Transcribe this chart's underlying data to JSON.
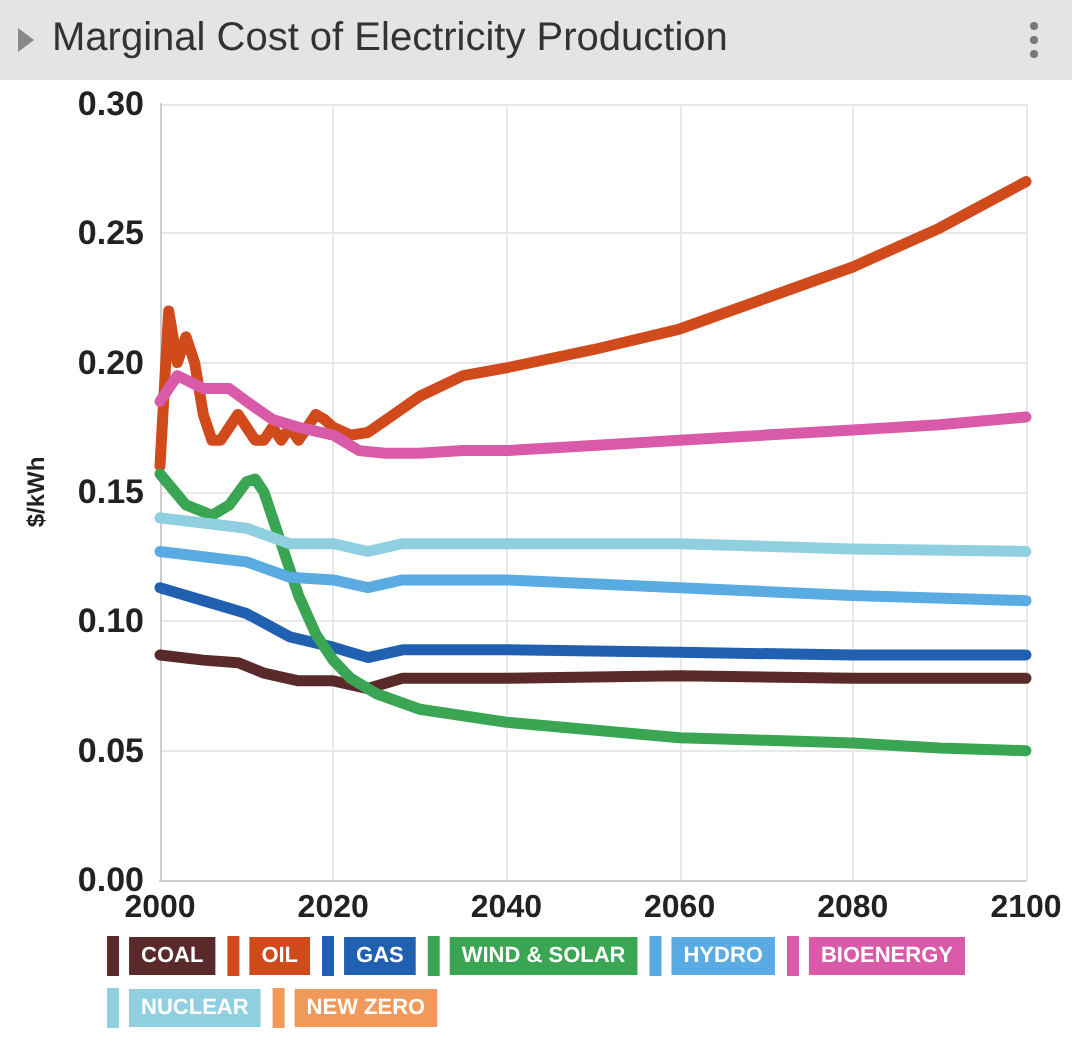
{
  "chart_data": {
    "type": "line",
    "title": "Marginal Cost of Electricity Production",
    "ylabel": "$/kWh",
    "xlim": [
      2000,
      2100
    ],
    "xticks": [
      2000,
      2020,
      2040,
      2060,
      2080,
      2100
    ],
    "ylim": [
      0,
      0.3
    ],
    "yticks": [
      {
        "value": 0,
        "label": "0.00"
      },
      {
        "value": 0.05,
        "label": "0.05"
      },
      {
        "value": 0.1,
        "label": "0.10"
      },
      {
        "value": 0.15,
        "label": "0.15"
      },
      {
        "value": 0.2,
        "label": "0.20"
      },
      {
        "value": 0.25,
        "label": "0.25"
      },
      {
        "value": 0.3,
        "label": "0.30"
      }
    ],
    "grid": true,
    "legend": "bottom",
    "marker": "none",
    "line_style": "solid",
    "series": [
      {
        "name": "COAL",
        "color": "#5a2a2a",
        "x": [
          2000,
          2005,
          2009,
          2012,
          2016,
          2020,
          2024,
          2028,
          2040,
          2060,
          2080,
          2100
        ],
        "values": [
          0.087,
          0.085,
          0.084,
          0.08,
          0.077,
          0.077,
          0.074,
          0.078,
          0.078,
          0.079,
          0.078,
          0.078
        ]
      },
      {
        "name": "OIL",
        "color": "#d04a1c",
        "x": [
          2000,
          2001,
          2002,
          2003,
          2004,
          2005,
          2006,
          2007,
          2008,
          2009,
          2010,
          2011,
          2012,
          2013,
          2014,
          2015,
          2016,
          2017,
          2018,
          2019,
          2020,
          2022,
          2024,
          2027,
          2030,
          2035,
          2040,
          2050,
          2060,
          2070,
          2080,
          2090,
          2100
        ],
        "values": [
          0.16,
          0.22,
          0.2,
          0.21,
          0.2,
          0.18,
          0.17,
          0.17,
          0.175,
          0.18,
          0.175,
          0.17,
          0.17,
          0.175,
          0.17,
          0.175,
          0.17,
          0.175,
          0.18,
          0.178,
          0.175,
          0.172,
          0.173,
          0.18,
          0.187,
          0.195,
          0.198,
          0.205,
          0.213,
          0.225,
          0.237,
          0.252,
          0.27
        ]
      },
      {
        "name": "GAS",
        "color": "#2160b0",
        "x": [
          2000,
          2005,
          2010,
          2015,
          2020,
          2024,
          2028,
          2040,
          2060,
          2080,
          2100
        ],
        "values": [
          0.113,
          0.108,
          0.103,
          0.094,
          0.09,
          0.086,
          0.089,
          0.089,
          0.088,
          0.087,
          0.087
        ]
      },
      {
        "name": "WIND & SOLAR",
        "color": "#3aa552",
        "x": [
          2000,
          2003,
          2006,
          2008,
          2010,
          2011,
          2012,
          2014,
          2016,
          2018,
          2020,
          2022,
          2025,
          2030,
          2040,
          2050,
          2060,
          2070,
          2080,
          2090,
          2100
        ],
        "values": [
          0.157,
          0.145,
          0.141,
          0.145,
          0.154,
          0.155,
          0.15,
          0.13,
          0.11,
          0.095,
          0.085,
          0.078,
          0.072,
          0.066,
          0.061,
          0.058,
          0.055,
          0.054,
          0.053,
          0.051,
          0.05
        ]
      },
      {
        "name": "HYDRO",
        "color": "#5aabe2",
        "x": [
          2000,
          2005,
          2010,
          2015,
          2020,
          2024,
          2028,
          2040,
          2060,
          2080,
          2100
        ],
        "values": [
          0.127,
          0.125,
          0.123,
          0.117,
          0.116,
          0.113,
          0.116,
          0.116,
          0.113,
          0.11,
          0.108
        ]
      },
      {
        "name": "BIOENERGY",
        "color": "#d85aa8",
        "x": [
          2000,
          2002,
          2005,
          2008,
          2010,
          2013,
          2016,
          2020,
          2023,
          2026,
          2030,
          2035,
          2040,
          2050,
          2060,
          2070,
          2080,
          2090,
          2100
        ],
        "values": [
          0.185,
          0.195,
          0.19,
          0.19,
          0.185,
          0.178,
          0.175,
          0.172,
          0.166,
          0.165,
          0.165,
          0.166,
          0.166,
          0.168,
          0.17,
          0.172,
          0.174,
          0.176,
          0.179
        ]
      },
      {
        "name": "NUCLEAR",
        "color": "#8fcfe0",
        "x": [
          2000,
          2005,
          2010,
          2015,
          2020,
          2024,
          2028,
          2040,
          2060,
          2080,
          2100
        ],
        "values": [
          0.14,
          0.138,
          0.136,
          0.13,
          0.13,
          0.127,
          0.13,
          0.13,
          0.13,
          0.128,
          0.127
        ]
      },
      {
        "name": "NEW ZERO",
        "color": "#f0995a"
      }
    ]
  }
}
